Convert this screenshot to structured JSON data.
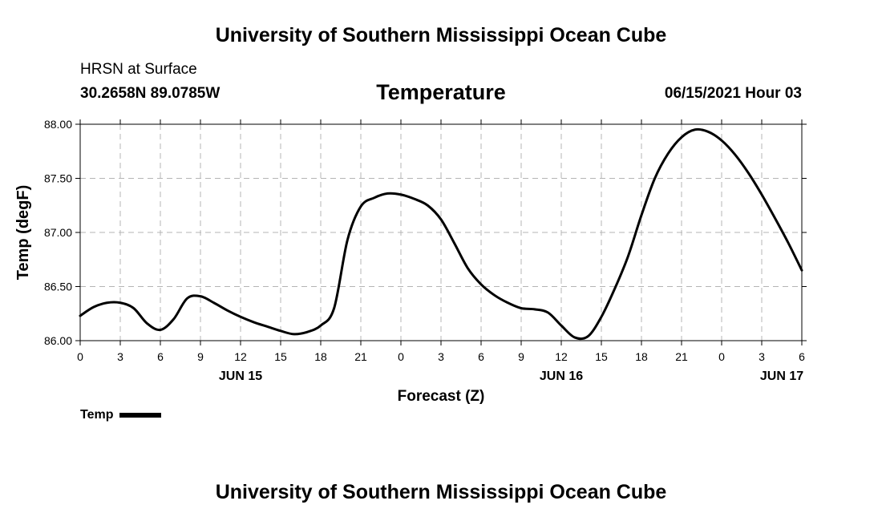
{
  "header": {
    "title": "University of Southern Mississippi Ocean Cube",
    "station": "HRSN at Surface",
    "coords": "30.2658N  89.0785W",
    "chart_title": "Temperature",
    "datetime": "06/15/2021 Hour 03"
  },
  "footer": {
    "title": "University of Southern Mississippi Ocean Cube"
  },
  "legend": {
    "label": "Temp"
  },
  "colors": {
    "line": "#000000",
    "grid": "#b4b4b4",
    "background": "#ffffff"
  },
  "chart_data": {
    "type": "line",
    "title": "Temperature",
    "xlabel": "Forecast (Z)",
    "ylabel": "Temp (degF)",
    "ylim": [
      86.0,
      88.0
    ],
    "xlim_hours": [
      0,
      54
    ],
    "grid": true,
    "legend_position": "bottom-left",
    "y_ticks": [
      "86.00",
      "86.50",
      "87.00",
      "87.50",
      "88.00"
    ],
    "x_ticks": [
      "0",
      "3",
      "6",
      "9",
      "12",
      "15",
      "18",
      "21",
      "0",
      "3",
      "6",
      "9",
      "12",
      "15",
      "18",
      "21",
      "0",
      "3",
      "6"
    ],
    "x_day_labels": [
      {
        "label": "JUN 15",
        "hour": 12
      },
      {
        "label": "JUN 16",
        "hour": 36
      },
      {
        "label": "JUN 17",
        "hour": 52.5
      }
    ],
    "series": [
      {
        "name": "Temp",
        "x_hours": [
          0,
          1,
          2,
          3,
          4,
          5,
          6,
          7,
          8,
          9,
          10,
          11,
          12,
          13,
          14,
          15,
          16,
          17,
          18,
          19,
          20,
          21,
          22,
          23,
          24,
          25,
          26,
          27,
          28,
          29,
          30,
          31,
          32,
          33,
          34,
          35,
          36,
          37,
          38,
          39,
          40,
          41,
          42,
          43,
          44,
          45,
          46,
          47,
          48,
          49,
          50,
          51,
          52,
          53,
          54
        ],
        "values": [
          86.23,
          86.31,
          86.35,
          86.35,
          86.3,
          86.16,
          86.1,
          86.2,
          86.39,
          86.41,
          86.35,
          86.28,
          86.22,
          86.17,
          86.13,
          86.09,
          86.06,
          86.08,
          86.14,
          86.3,
          86.93,
          87.24,
          87.32,
          87.36,
          87.35,
          87.31,
          87.25,
          87.12,
          86.9,
          86.67,
          86.52,
          86.42,
          86.35,
          86.3,
          86.29,
          86.26,
          86.14,
          86.03,
          86.04,
          86.22,
          86.48,
          86.78,
          87.16,
          87.5,
          87.73,
          87.88,
          87.95,
          87.93,
          87.85,
          87.72,
          87.55,
          87.35,
          87.13,
          86.9,
          86.65
        ]
      }
    ]
  }
}
